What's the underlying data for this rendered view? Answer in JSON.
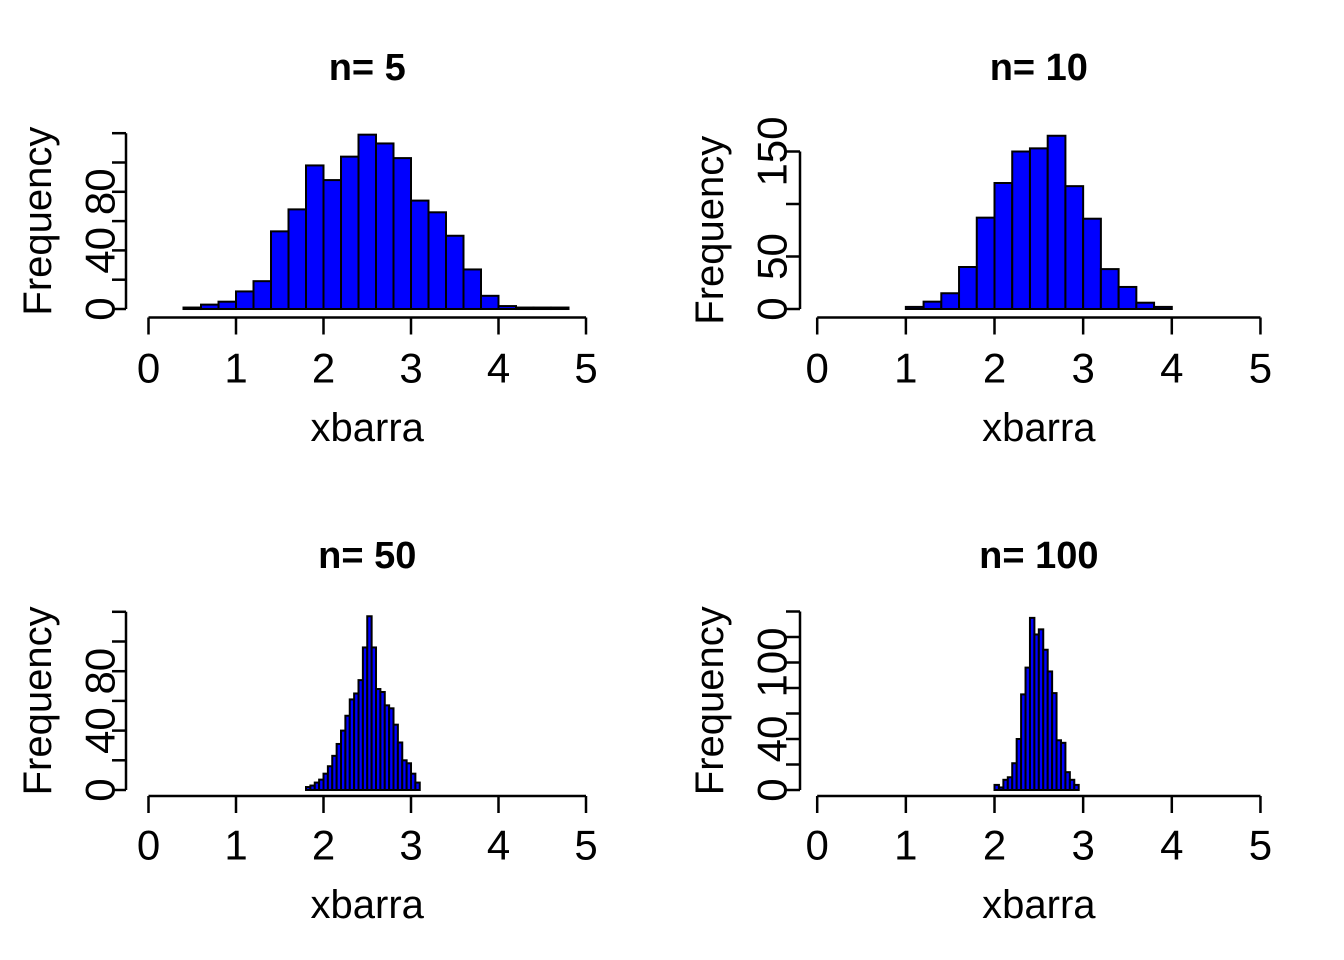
{
  "figure": {
    "background": "#ffffff",
    "bar_fill": "#0000ff",
    "bar_stroke": "#000000",
    "text_color": "#000000"
  },
  "chart_data": [
    {
      "type": "bar",
      "title": "n= 5",
      "xlabel": "xbarra",
      "ylabel": "Frequency",
      "xlim": [
        0,
        5
      ],
      "x_ticks": [
        0,
        1,
        2,
        3,
        4,
        5
      ],
      "x_tick_labels": [
        "0",
        "1",
        "2",
        "3",
        "4",
        "5"
      ],
      "y_ticks": [
        0,
        20,
        40,
        60,
        80,
        100,
        120
      ],
      "y_tick_labels": [
        "0",
        "",
        "40",
        "",
        "80",
        "",
        ""
      ],
      "bin_start": 0.4,
      "bin_width": 0.2,
      "values": [
        1,
        3,
        5,
        12,
        19,
        53,
        68,
        98,
        88,
        104,
        119,
        113,
        103,
        74,
        66,
        50,
        27,
        9,
        2,
        1,
        1,
        1
      ],
      "grid": false,
      "legend": "none"
    },
    {
      "type": "bar",
      "title": "n= 10",
      "xlabel": "xbarra",
      "ylabel": "Frequency",
      "xlim": [
        0,
        5
      ],
      "x_ticks": [
        0,
        1,
        2,
        3,
        4,
        5
      ],
      "x_tick_labels": [
        "0",
        "1",
        "2",
        "3",
        "4",
        "5"
      ],
      "y_ticks": [
        0,
        50,
        100,
        150
      ],
      "y_tick_labels": [
        "0",
        "50",
        "",
        "150"
      ],
      "bin_start": 1.0,
      "bin_width": 0.2,
      "values": [
        2,
        7,
        15,
        40,
        87,
        120,
        150,
        153,
        165,
        117,
        86,
        38,
        21,
        6,
        2
      ],
      "grid": false,
      "legend": "none"
    },
    {
      "type": "bar",
      "title": "n= 50",
      "xlabel": "xbarra",
      "ylabel": "Frequency",
      "xlim": [
        0,
        5
      ],
      "x_ticks": [
        0,
        1,
        2,
        3,
        4,
        5
      ],
      "x_tick_labels": [
        "0",
        "1",
        "2",
        "3",
        "4",
        "5"
      ],
      "y_ticks": [
        0,
        20,
        40,
        60,
        80,
        100,
        120
      ],
      "y_tick_labels": [
        "0",
        "",
        "40",
        "",
        "80",
        "",
        ""
      ],
      "bin_start": 1.8,
      "bin_width": 0.05,
      "values": [
        2,
        3,
        5,
        7,
        11,
        16,
        23,
        31,
        40,
        50,
        61,
        65,
        74,
        96,
        117,
        96,
        68,
        66,
        57,
        55,
        44,
        32,
        20,
        18,
        11,
        5
      ],
      "grid": false,
      "legend": "none"
    },
    {
      "type": "bar",
      "title": "n= 100",
      "xlabel": "xbarra",
      "ylabel": "Frequency",
      "xlim": [
        0,
        5
      ],
      "x_ticks": [
        0,
        1,
        2,
        3,
        4,
        5
      ],
      "x_tick_labels": [
        "0",
        "1",
        "2",
        "3",
        "4",
        "5"
      ],
      "y_ticks": [
        0,
        20,
        40,
        60,
        80,
        100,
        120,
        140
      ],
      "y_tick_labels": [
        "0",
        "",
        "40",
        "",
        "",
        "100",
        "",
        ""
      ],
      "bin_start": 2.0,
      "bin_width": 0.05,
      "values": [
        4,
        2,
        8,
        10,
        21,
        40,
        75,
        96,
        135,
        122,
        126,
        110,
        93,
        76,
        39,
        37,
        14,
        8,
        4
      ],
      "grid": false,
      "legend": "none"
    }
  ]
}
